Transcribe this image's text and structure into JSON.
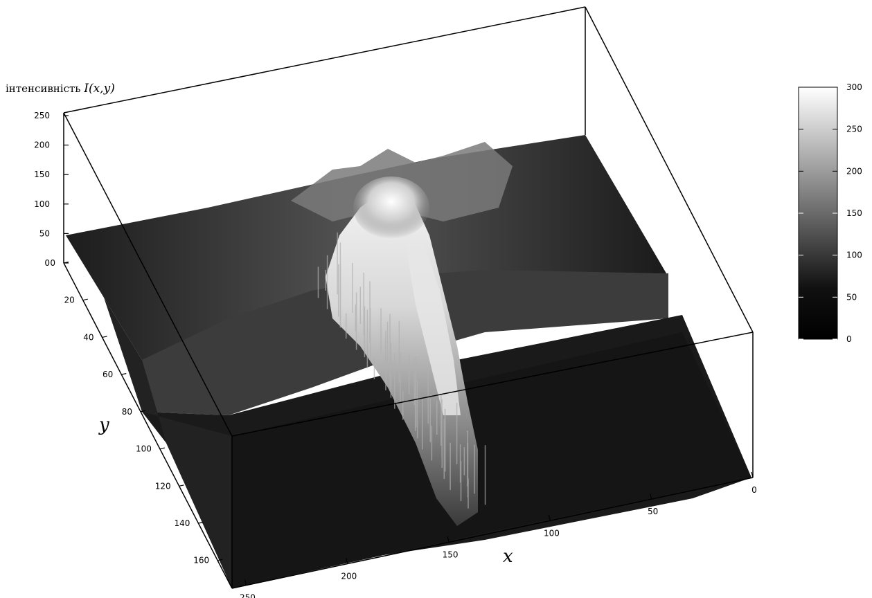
{
  "chart_data": {
    "type": "surface",
    "z_axis_label_prefix": "інтенсивність ",
    "z_axis_label_italic": "I(x,y)",
    "xlabel": "x",
    "ylabel": "y",
    "x_ticks": [
      "0",
      "50",
      "100",
      "150",
      "200",
      "250"
    ],
    "y_ticks": [
      "0",
      "20",
      "40",
      "60",
      "80",
      "100",
      "120",
      "140",
      "160"
    ],
    "z_ticks": [
      "0",
      "50",
      "100",
      "150",
      "200",
      "250"
    ],
    "colorbar_ticks": [
      "0",
      "50",
      "100",
      "150",
      "200",
      "250",
      "300"
    ],
    "xlim": [
      0,
      250
    ],
    "ylim": [
      0,
      160
    ],
    "zlim": [
      0,
      250
    ],
    "colorbar_range": [
      0,
      300
    ],
    "colormap": "grayscale",
    "surface_features": {
      "background_level": 40,
      "ridge_peak_intensity": 280,
      "ridge_peak_x": 145,
      "ridge_peak_y": 10,
      "ridge_end_x": 120,
      "ridge_end_y": 110
    }
  }
}
